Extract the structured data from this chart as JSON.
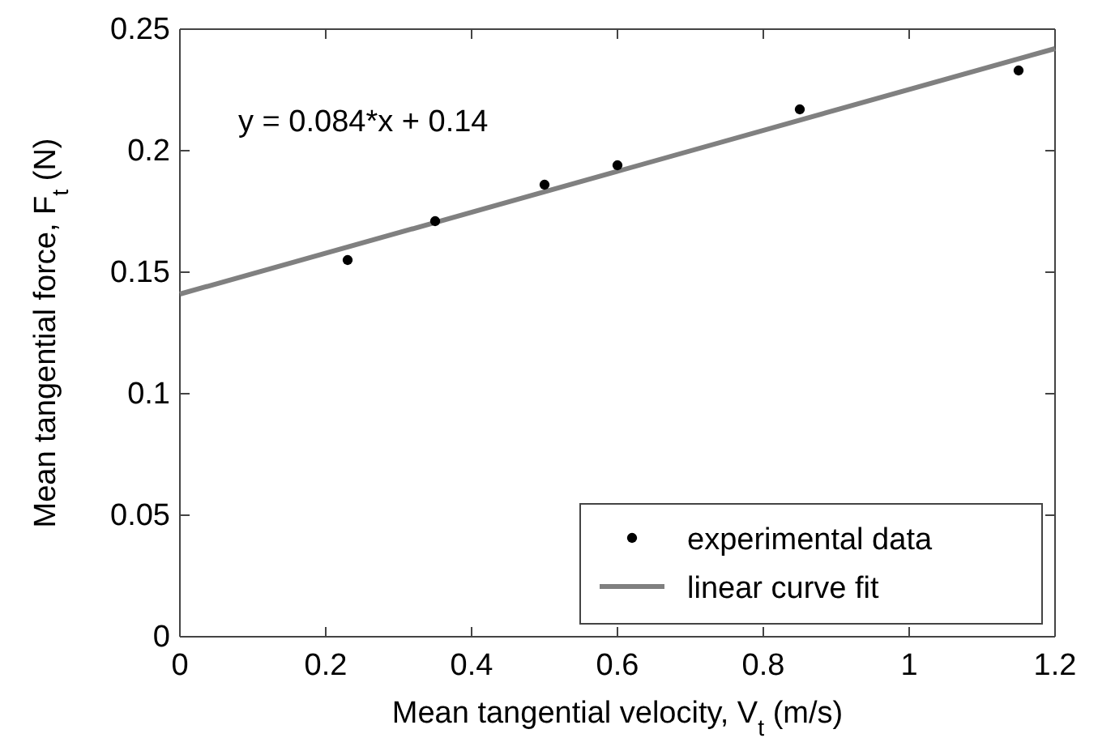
{
  "chart_data": {
    "type": "scatter",
    "xlabel": "Mean tangential velocity, V$_{t}$ (m/s)",
    "ylabel": "Mean tangential force, F$_{t}$ (N)",
    "annotations": [
      "y = 0.084*x + 0.14"
    ],
    "xlim": [
      0,
      1.2
    ],
    "xticks": [
      0,
      0.2,
      0.4,
      0.6,
      0.8,
      1,
      1.2
    ],
    "ylim": [
      0,
      0.25
    ],
    "yticks": [
      0,
      0.05,
      0.1,
      0.15,
      0.2,
      0.25
    ],
    "grid": false,
    "legend": "bottom right",
    "series": [
      {
        "name": "experimental data",
        "marker": "circle",
        "color": "#000000",
        "x": [
          0.23,
          0.35,
          0.5,
          0.6,
          0.85,
          1.15
        ],
        "values": [
          0.155,
          0.171,
          0.186,
          0.194,
          0.217,
          0.233
        ]
      },
      {
        "name": "linear curve fit",
        "type": "line",
        "color": "#808080",
        "x": [
          0,
          1.2
        ],
        "values": [
          0.141,
          0.242
        ],
        "line_style": "solid"
      }
    ]
  }
}
